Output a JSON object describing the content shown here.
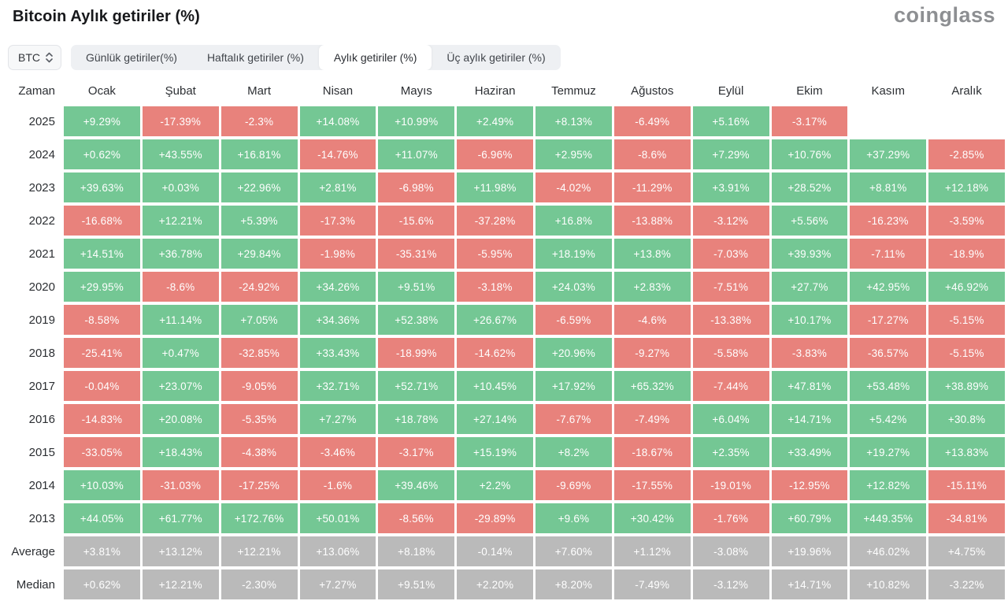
{
  "header": {
    "title": "Bitcoin Aylık getiriler (%)",
    "logo": "coinglass"
  },
  "toolbar": {
    "coin_selector": {
      "value": "BTC"
    },
    "tabs": [
      {
        "label": "Günlük getiriler(%)",
        "active": false
      },
      {
        "label": "Haftalık getiriler (%)",
        "active": false
      },
      {
        "label": "Aylık getiriler (%)",
        "active": true
      },
      {
        "label": "Üç aylık getiriler (%)",
        "active": false
      }
    ]
  },
  "colors": {
    "positive": "#74c794",
    "negative": "#e8827c",
    "summary": "#bababa"
  },
  "chart_data": {
    "type": "heatmap",
    "title": "Bitcoin Aylık getiriler (%)",
    "row_header": "Zaman",
    "columns": [
      "Ocak",
      "Şubat",
      "Mart",
      "Nisan",
      "Mayıs",
      "Haziran",
      "Temmuz",
      "Ağustos",
      "Eylül",
      "Ekim",
      "Kasım",
      "Aralık"
    ],
    "rows": [
      {
        "label": "2025",
        "type": "year",
        "values": [
          "+9.29%",
          "-17.39%",
          "-2.3%",
          "+14.08%",
          "+10.99%",
          "+2.49%",
          "+8.13%",
          "-6.49%",
          "+5.16%",
          "-3.17%",
          "",
          ""
        ]
      },
      {
        "label": "2024",
        "type": "year",
        "values": [
          "+0.62%",
          "+43.55%",
          "+16.81%",
          "-14.76%",
          "+11.07%",
          "-6.96%",
          "+2.95%",
          "-8.6%",
          "+7.29%",
          "+10.76%",
          "+37.29%",
          "-2.85%"
        ]
      },
      {
        "label": "2023",
        "type": "year",
        "values": [
          "+39.63%",
          "+0.03%",
          "+22.96%",
          "+2.81%",
          "-6.98%",
          "+11.98%",
          "-4.02%",
          "-11.29%",
          "+3.91%",
          "+28.52%",
          "+8.81%",
          "+12.18%"
        ]
      },
      {
        "label": "2022",
        "type": "year",
        "values": [
          "-16.68%",
          "+12.21%",
          "+5.39%",
          "-17.3%",
          "-15.6%",
          "-37.28%",
          "+16.8%",
          "-13.88%",
          "-3.12%",
          "+5.56%",
          "-16.23%",
          "-3.59%"
        ]
      },
      {
        "label": "2021",
        "type": "year",
        "values": [
          "+14.51%",
          "+36.78%",
          "+29.84%",
          "-1.98%",
          "-35.31%",
          "-5.95%",
          "+18.19%",
          "+13.8%",
          "-7.03%",
          "+39.93%",
          "-7.11%",
          "-18.9%"
        ]
      },
      {
        "label": "2020",
        "type": "year",
        "values": [
          "+29.95%",
          "-8.6%",
          "-24.92%",
          "+34.26%",
          "+9.51%",
          "-3.18%",
          "+24.03%",
          "+2.83%",
          "-7.51%",
          "+27.7%",
          "+42.95%",
          "+46.92%"
        ]
      },
      {
        "label": "2019",
        "type": "year",
        "values": [
          "-8.58%",
          "+11.14%",
          "+7.05%",
          "+34.36%",
          "+52.38%",
          "+26.67%",
          "-6.59%",
          "-4.6%",
          "-13.38%",
          "+10.17%",
          "-17.27%",
          "-5.15%"
        ]
      },
      {
        "label": "2018",
        "type": "year",
        "values": [
          "-25.41%",
          "+0.47%",
          "-32.85%",
          "+33.43%",
          "-18.99%",
          "-14.62%",
          "+20.96%",
          "-9.27%",
          "-5.58%",
          "-3.83%",
          "-36.57%",
          "-5.15%"
        ]
      },
      {
        "label": "2017",
        "type": "year",
        "values": [
          "-0.04%",
          "+23.07%",
          "-9.05%",
          "+32.71%",
          "+52.71%",
          "+10.45%",
          "+17.92%",
          "+65.32%",
          "-7.44%",
          "+47.81%",
          "+53.48%",
          "+38.89%"
        ]
      },
      {
        "label": "2016",
        "type": "year",
        "values": [
          "-14.83%",
          "+20.08%",
          "-5.35%",
          "+7.27%",
          "+18.78%",
          "+27.14%",
          "-7.67%",
          "-7.49%",
          "+6.04%",
          "+14.71%",
          "+5.42%",
          "+30.8%"
        ]
      },
      {
        "label": "2015",
        "type": "year",
        "values": [
          "-33.05%",
          "+18.43%",
          "-4.38%",
          "-3.46%",
          "-3.17%",
          "+15.19%",
          "+8.2%",
          "-18.67%",
          "+2.35%",
          "+33.49%",
          "+19.27%",
          "+13.83%"
        ]
      },
      {
        "label": "2014",
        "type": "year",
        "values": [
          "+10.03%",
          "-31.03%",
          "-17.25%",
          "-1.6%",
          "+39.46%",
          "+2.2%",
          "-9.69%",
          "-17.55%",
          "-19.01%",
          "-12.95%",
          "+12.82%",
          "-15.11%"
        ]
      },
      {
        "label": "2013",
        "type": "year",
        "values": [
          "+44.05%",
          "+61.77%",
          "+172.76%",
          "+50.01%",
          "-8.56%",
          "-29.89%",
          "+9.6%",
          "+30.42%",
          "-1.76%",
          "+60.79%",
          "+449.35%",
          "-34.81%"
        ]
      },
      {
        "label": "Average",
        "type": "summary",
        "values": [
          "+3.81%",
          "+13.12%",
          "+12.21%",
          "+13.06%",
          "+8.18%",
          "-0.14%",
          "+7.60%",
          "+1.12%",
          "-3.08%",
          "+19.96%",
          "+46.02%",
          "+4.75%"
        ]
      },
      {
        "label": "Median",
        "type": "summary",
        "values": [
          "+0.62%",
          "+12.21%",
          "-2.30%",
          "+7.27%",
          "+9.51%",
          "+2.20%",
          "+8.20%",
          "-7.49%",
          "-3.12%",
          "+14.71%",
          "+10.82%",
          "-3.22%"
        ]
      }
    ]
  }
}
